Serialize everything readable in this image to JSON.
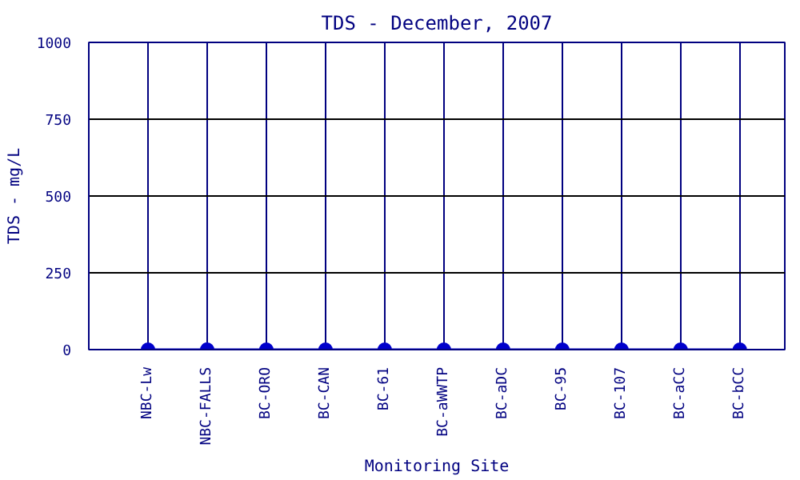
{
  "chart_data": {
    "type": "line",
    "title": "TDS - December, 2007",
    "xlabel": "Monitoring Site",
    "ylabel": "TDS - mg/L",
    "categories": [
      "NBC-Lw",
      "NBC-FALLS",
      "BC-ORO",
      "BC-CAN",
      "BC-61",
      "BC-aWWTP",
      "BC-aDC",
      "BC-95",
      "BC-107",
      "BC-aCC",
      "BC-bCC"
    ],
    "series": [
      {
        "color": "#0000cc",
        "values": [
          0,
          0,
          0,
          0,
          0,
          0,
          0,
          0,
          0,
          0,
          0
        ]
      }
    ],
    "ylim": [
      0,
      1000
    ],
    "yticks": [
      0,
      250,
      500,
      750,
      1000
    ],
    "grid": true,
    "marker": "circle",
    "line_style": "solid"
  }
}
